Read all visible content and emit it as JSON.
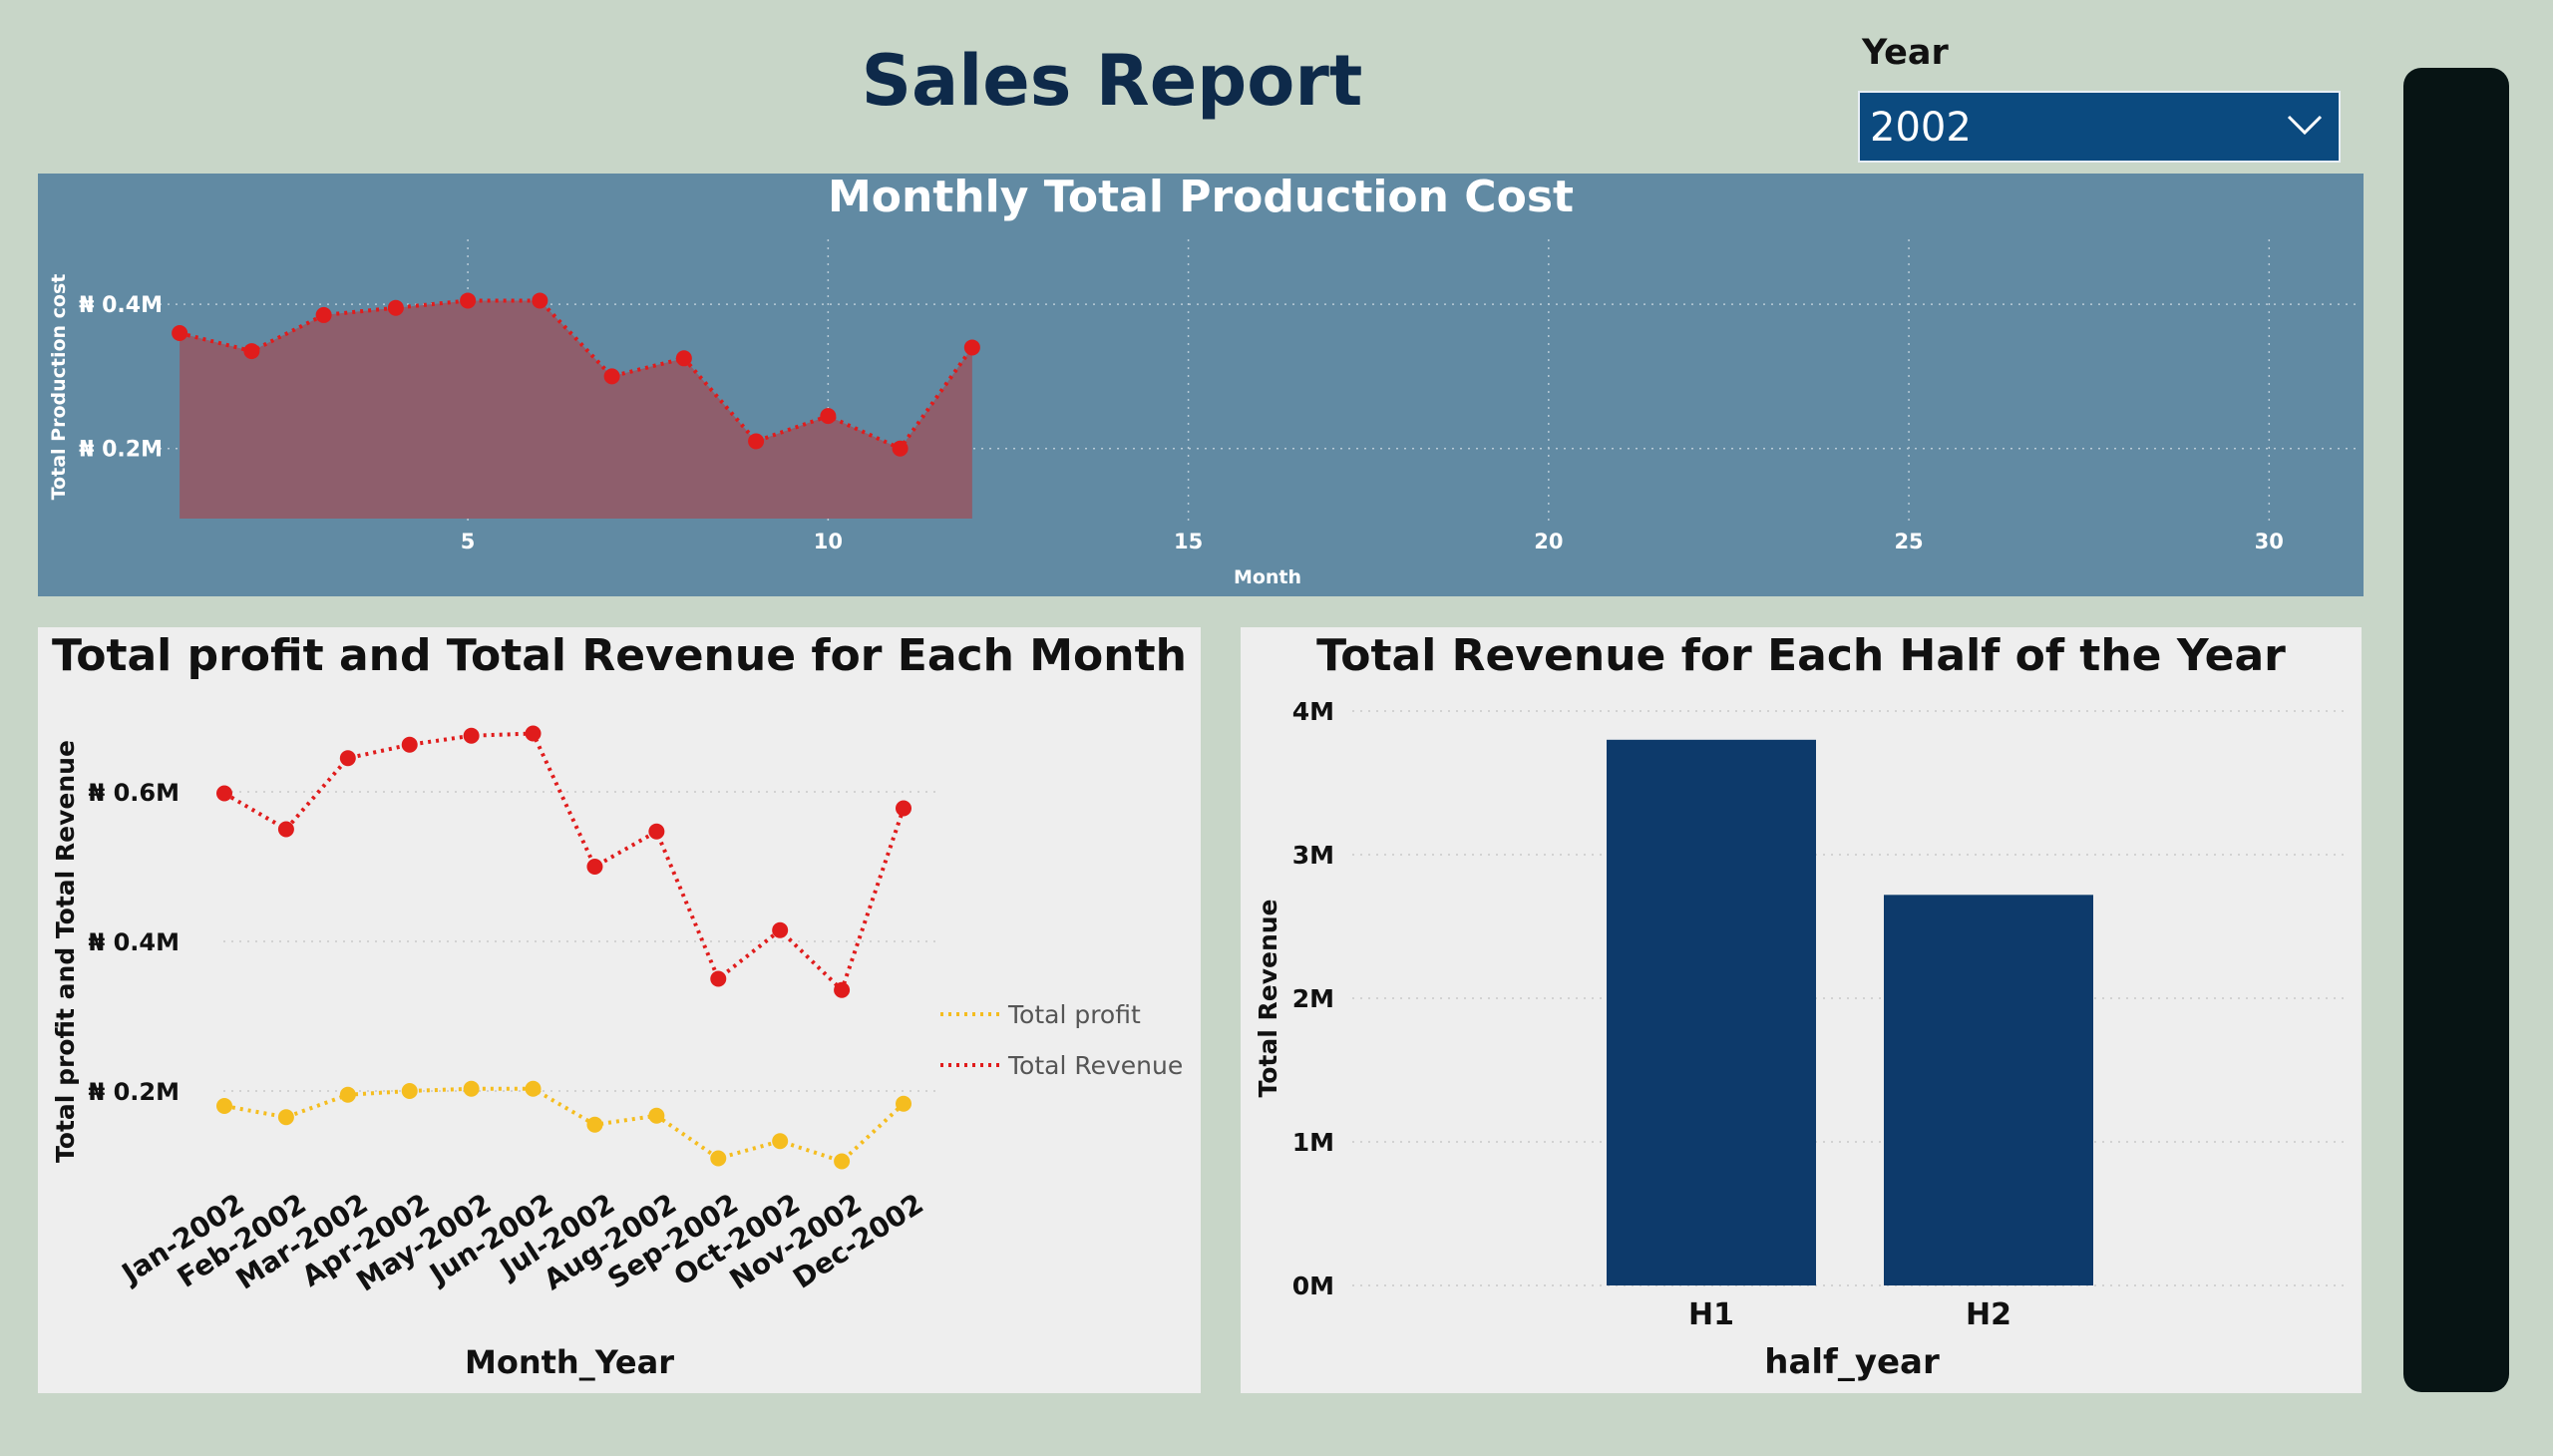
{
  "report": {
    "title": "Sales Report",
    "slicer": {
      "label": "Year",
      "value": "2002"
    }
  },
  "colors": {
    "background": "#c8d6c8",
    "cost_panel": "#618aa3",
    "cost_line": "#e01c1c",
    "cost_area": "#8e5e6c",
    "revenue": "#e01c1c",
    "profit": "#f5bd1f",
    "bar": "#0d3a6b",
    "slicer": "#0b4a7f",
    "side_panel": "#071414"
  },
  "chart_data": [
    {
      "id": "cost",
      "type": "area",
      "title": "Monthly Total Production Cost",
      "xlabel": "Month",
      "ylabel": "Total Production cost",
      "x": [
        1,
        2,
        3,
        4,
        5,
        6,
        7,
        8,
        9,
        10,
        11,
        12
      ],
      "values": [
        360000,
        335000,
        385000,
        395000,
        405000,
        405000,
        300000,
        325000,
        210000,
        245000,
        200000,
        340000
      ],
      "xlim": [
        0.5,
        31.2
      ],
      "ylim": [
        100000,
        490000
      ],
      "xticks": [
        5,
        10,
        15,
        20,
        25,
        30
      ],
      "yticks": [
        200000,
        400000
      ],
      "ytick_labels": [
        "₦ 0.2M",
        "₦ 0.4M"
      ],
      "grid": true,
      "legend": "none"
    },
    {
      "id": "monthly",
      "type": "line",
      "title": "Total profit and Total Revenue for Each Month",
      "xlabel": "Month_Year",
      "ylabel": "Total profit and Total Revenue",
      "categories": [
        "Jan-2002",
        "Feb-2002",
        "Mar-2002",
        "Apr-2002",
        "May-2002",
        "Jun-2002",
        "Jul-2002",
        "Aug-2002",
        "Sep-2002",
        "Oct-2002",
        "Nov-2002",
        "Dec-2002"
      ],
      "series": [
        {
          "name": "Total profit",
          "color": "#f5bd1f",
          "values": [
            180000,
            165000,
            195000,
            200000,
            203000,
            203000,
            155000,
            167000,
            110000,
            133000,
            106000,
            183000
          ]
        },
        {
          "name": "Total Revenue",
          "color": "#e01c1c",
          "values": [
            598000,
            550000,
            645000,
            663000,
            675000,
            678000,
            500000,
            547000,
            350000,
            415000,
            335000,
            578000
          ]
        }
      ],
      "ylim": [
        100000,
        740000
      ],
      "yticks": [
        200000,
        400000,
        600000
      ],
      "ytick_labels": [
        "₦ 0.2M",
        "₦ 0.4M",
        "₦ 0.6M"
      ],
      "grid": true,
      "legend": "right"
    },
    {
      "id": "half",
      "type": "bar",
      "title": "Total Revenue for Each Half of the Year",
      "xlabel": "half_year",
      "ylabel": "Total Revenue",
      "categories": [
        "H1",
        "H2"
      ],
      "values": [
        3800000,
        2720000
      ],
      "ylim": [
        0,
        4000000
      ],
      "yticks": [
        0,
        1000000,
        2000000,
        3000000,
        4000000
      ],
      "ytick_labels": [
        "0M",
        "1M",
        "2M",
        "3M",
        "4M"
      ],
      "grid": true,
      "legend": "none"
    }
  ]
}
